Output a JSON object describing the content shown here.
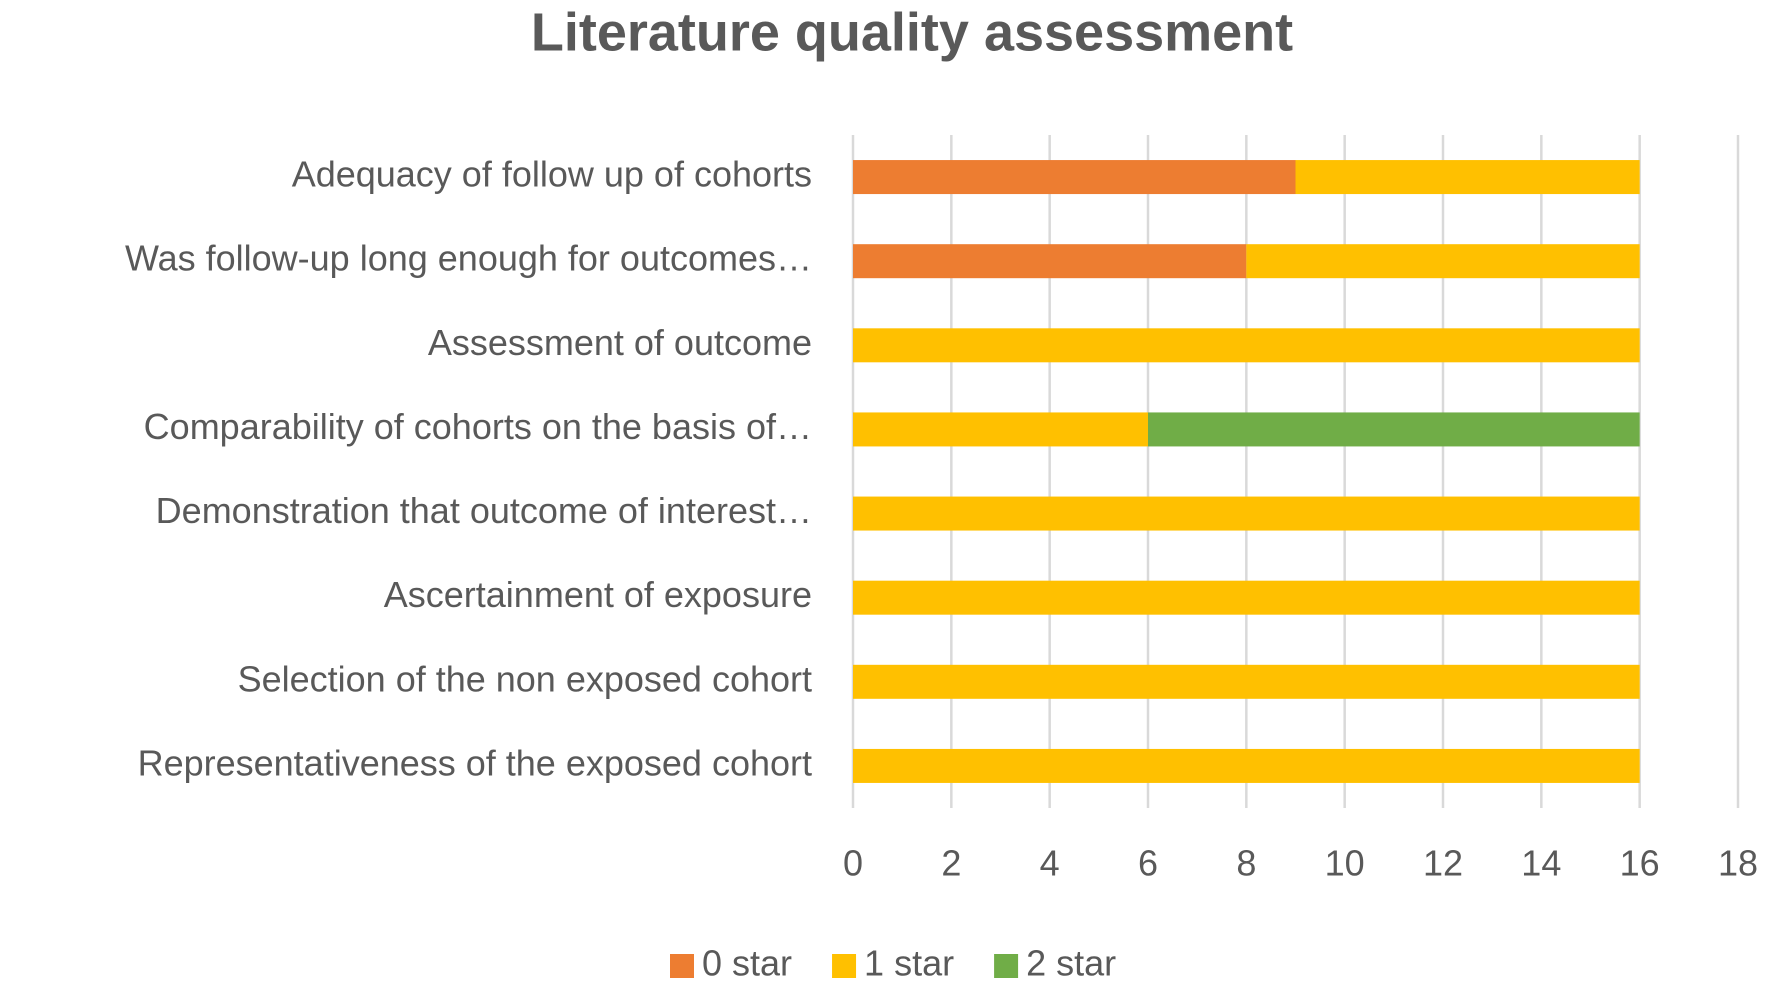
{
  "chart_data": {
    "type": "stacked-bar-horizontal",
    "title": "Literature quality assessment",
    "categories": [
      "Adequacy of follow up of cohorts",
      "Was follow-up long enough for outcomes…",
      "Assessment of outcome",
      "Comparability of cohorts on the basis of…",
      "Demonstration that outcome of interest…",
      "Ascertainment of exposure",
      "Selection of the non exposed cohort",
      "Representativeness of the exposed cohort"
    ],
    "series": [
      {
        "name": "0 star",
        "color": "#ed7d31",
        "values": [
          9,
          8,
          0,
          0,
          0,
          0,
          0,
          0
        ]
      },
      {
        "name": "1 star",
        "color": "#ffc000",
        "values": [
          7,
          8,
          16,
          6,
          16,
          16,
          16,
          16
        ]
      },
      {
        "name": "2 star",
        "color": "#70ad47",
        "values": [
          0,
          0,
          0,
          10,
          0,
          0,
          0,
          0
        ]
      }
    ],
    "xlim": [
      0,
      18
    ],
    "xticks": [
      0,
      2,
      4,
      6,
      8,
      10,
      12,
      14,
      16,
      18
    ],
    "grid": true,
    "legend": "bottom"
  }
}
